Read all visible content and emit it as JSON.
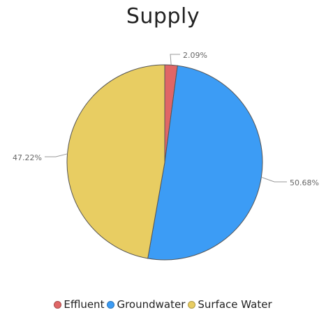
{
  "chart_data": {
    "type": "pie",
    "title": "Supply",
    "categories": [
      "Effluent",
      "Groundwater",
      "Surface Water"
    ],
    "values": [
      2.09,
      50.68,
      47.22
    ],
    "labels": [
      "2.09%",
      "50.68%",
      "47.22%"
    ],
    "colors": [
      "#e06666",
      "#3c9cf5",
      "#e8cd62"
    ],
    "legend_position": "bottom"
  }
}
